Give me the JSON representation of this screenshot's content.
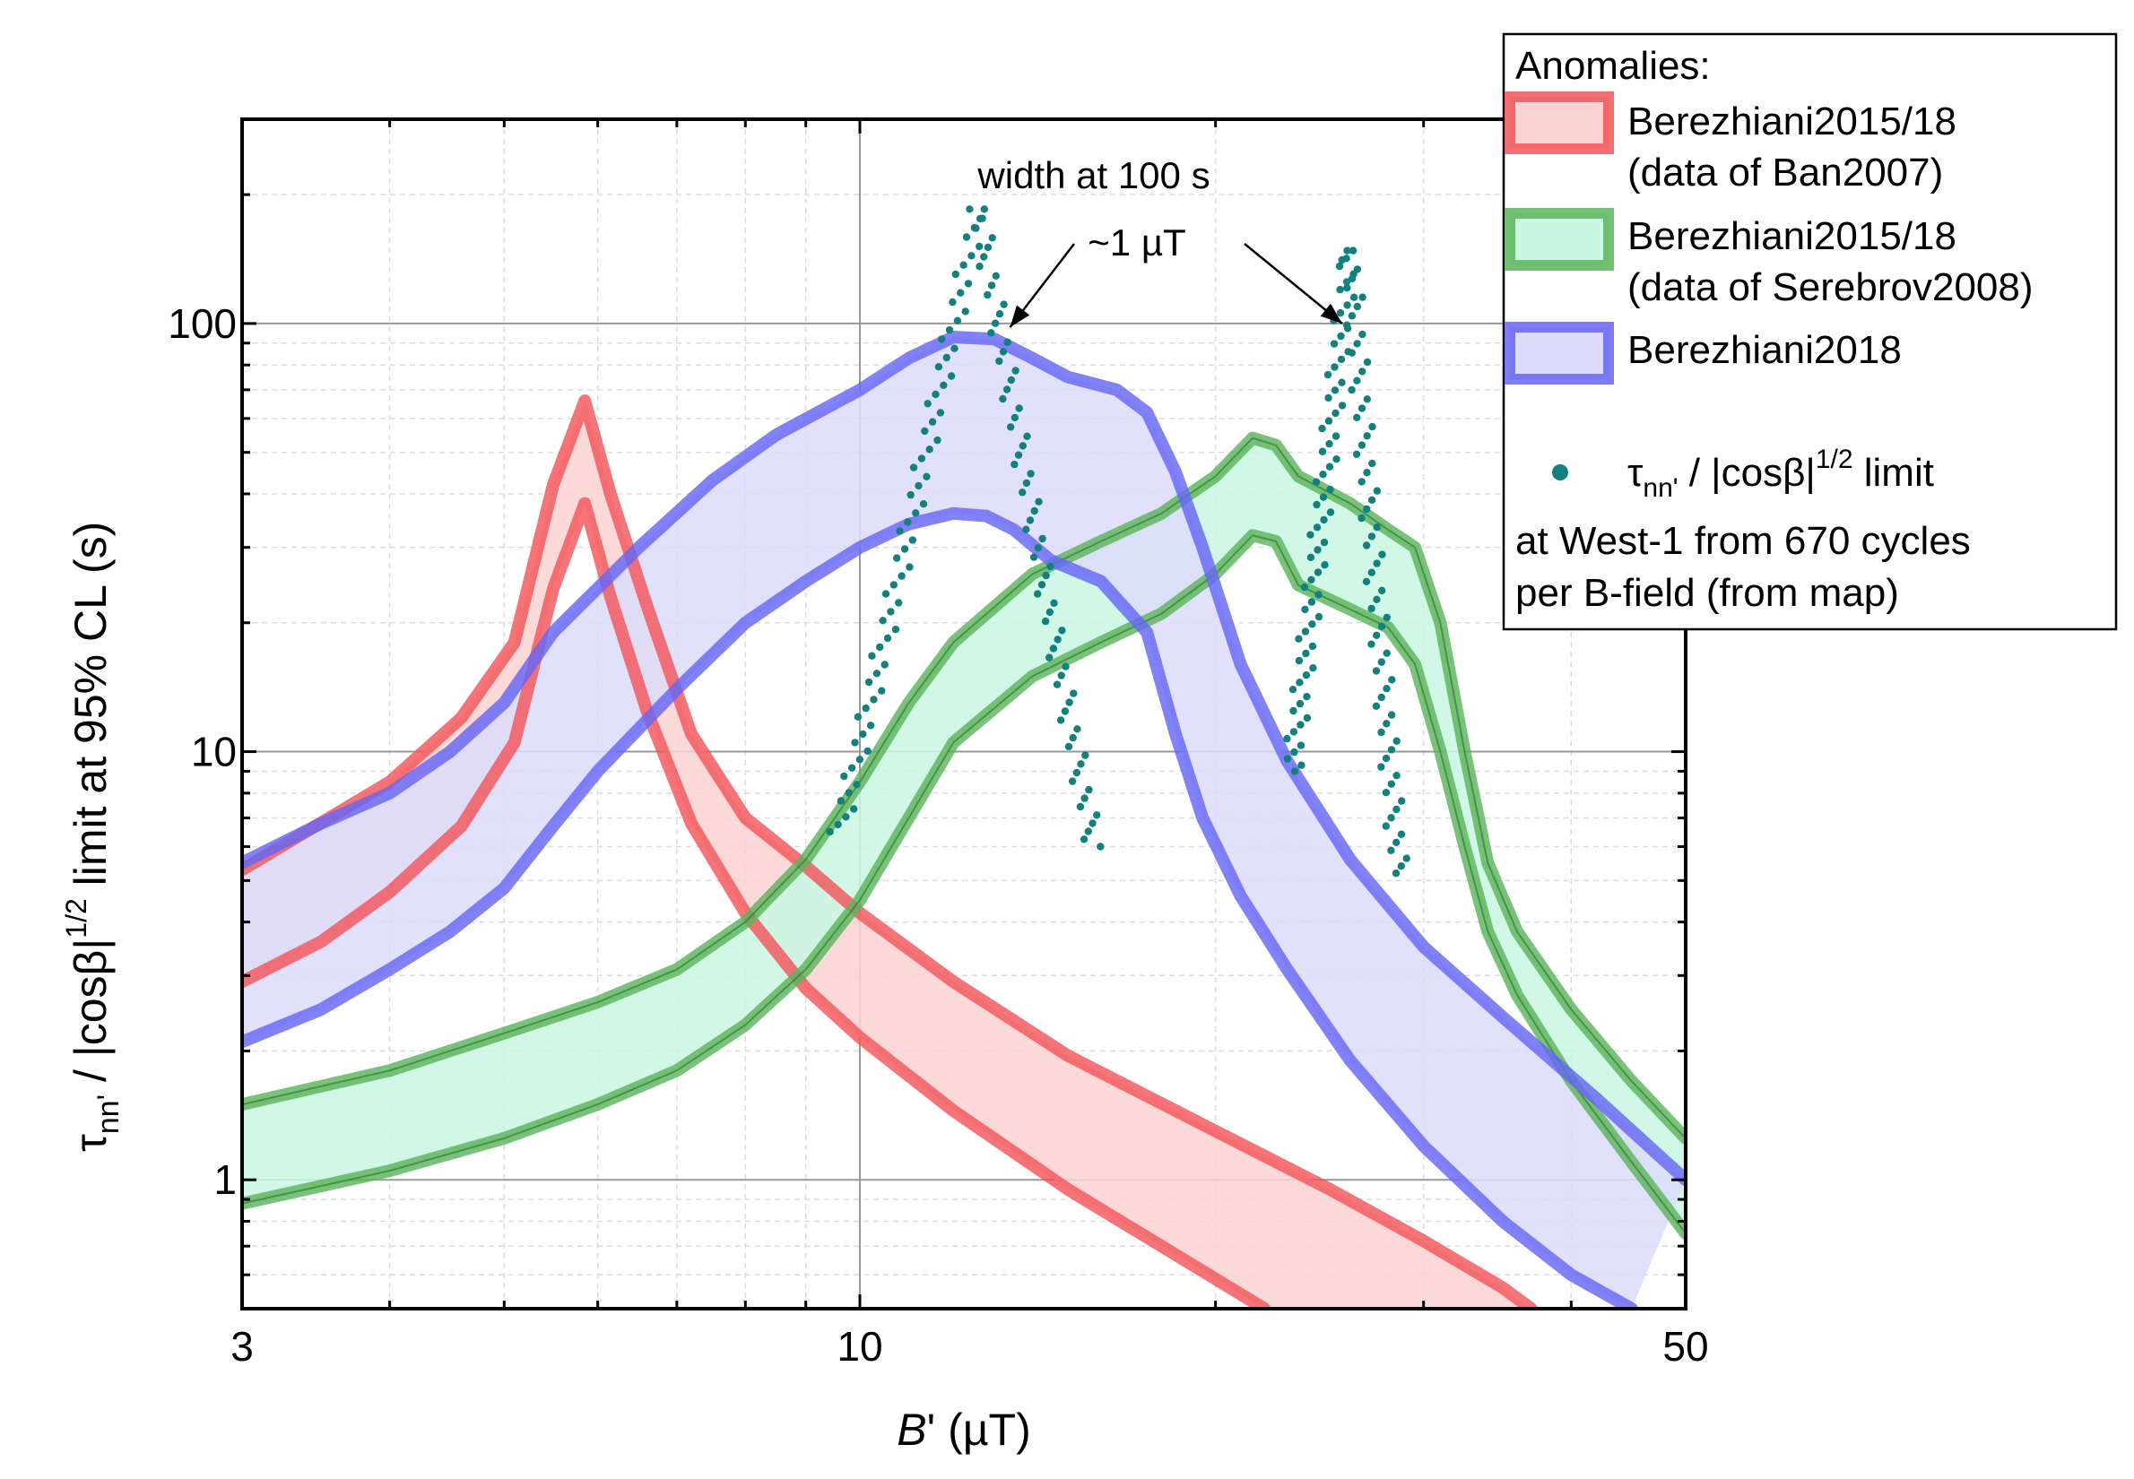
{
  "chart_data": {
    "type": "line",
    "x_scale": "log",
    "y_scale": "log",
    "xlim": [
      3,
      50
    ],
    "ylim": [
      0.5,
      300
    ],
    "xlabel_italic": "B",
    "xlabel_rest": "' (µT)",
    "ylabel_tau": "τ",
    "ylabel_sub": "nn'",
    "ylabel_mid": " / |cosβ|",
    "ylabel_sup": "1/2",
    "ylabel_rest": "   limit at 95% CL (s)",
    "x_ticks": [
      {
        "value": 3,
        "label": "3"
      },
      {
        "value": 10,
        "label": "10"
      },
      {
        "value": 50,
        "label": "50"
      }
    ],
    "y_ticks": [
      {
        "value": 1,
        "label": "1"
      },
      {
        "value": 10,
        "label": "10"
      },
      {
        "value": 100,
        "label": "100"
      }
    ],
    "bands": [
      {
        "name": "Berezhiani2015/18 (data of Ban2007)",
        "color": "#f2565a",
        "fill": "#fbd2d2",
        "upper": [
          [
            3,
            5.3
          ],
          [
            4,
            8.5
          ],
          [
            4.6,
            12
          ],
          [
            5.1,
            18
          ],
          [
            5.5,
            42
          ],
          [
            5.85,
            66
          ],
          [
            6.15,
            40
          ],
          [
            6.6,
            22
          ],
          [
            7.2,
            11
          ],
          [
            8,
            7
          ],
          [
            9,
            5.4
          ],
          [
            10,
            4.2
          ],
          [
            12,
            2.9
          ],
          [
            15,
            1.95
          ],
          [
            20,
            1.3
          ],
          [
            25,
            0.95
          ],
          [
            30,
            0.72
          ],
          [
            35,
            0.56
          ],
          [
            37,
            0.5
          ]
        ],
        "lower": [
          [
            3,
            2.9
          ],
          [
            3.5,
            3.6
          ],
          [
            4,
            4.7
          ],
          [
            4.6,
            6.7
          ],
          [
            5.1,
            10.5
          ],
          [
            5.5,
            24
          ],
          [
            5.85,
            38
          ],
          [
            6.15,
            23
          ],
          [
            6.6,
            12.5
          ],
          [
            7.2,
            6.8
          ],
          [
            8,
            4.2
          ],
          [
            9,
            2.8
          ],
          [
            10,
            2.15
          ],
          [
            12,
            1.45
          ],
          [
            15,
            0.95
          ],
          [
            18,
            0.7
          ],
          [
            22,
            0.5
          ]
        ]
      },
      {
        "name": "Berezhiani2015/18 (data of Serebrov2008)",
        "color": "#5bb55b",
        "fill": "#c9f7e3",
        "upper": [
          [
            3,
            1.5
          ],
          [
            4,
            1.8
          ],
          [
            5,
            2.2
          ],
          [
            6,
            2.6
          ],
          [
            7,
            3.1
          ],
          [
            8,
            4
          ],
          [
            9,
            5.6
          ],
          [
            10,
            8.5
          ],
          [
            11,
            13
          ],
          [
            12,
            18
          ],
          [
            14,
            26
          ],
          [
            16,
            31
          ],
          [
            18,
            36
          ],
          [
            20,
            44
          ],
          [
            21.5,
            54
          ],
          [
            22.5,
            52
          ],
          [
            23.5,
            44
          ],
          [
            26,
            38
          ],
          [
            28,
            33
          ],
          [
            29.5,
            30
          ],
          [
            31,
            20
          ],
          [
            32.5,
            10
          ],
          [
            34,
            5.5
          ],
          [
            36,
            3.8
          ],
          [
            40,
            2.5
          ],
          [
            45,
            1.7
          ],
          [
            50,
            1.25
          ]
        ],
        "lower": [
          [
            3,
            0.88
          ],
          [
            4,
            1.05
          ],
          [
            5,
            1.25
          ],
          [
            6,
            1.5
          ],
          [
            7,
            1.8
          ],
          [
            8,
            2.3
          ],
          [
            9,
            3.1
          ],
          [
            10,
            4.5
          ],
          [
            11,
            7
          ],
          [
            12,
            10.5
          ],
          [
            14,
            15
          ],
          [
            16,
            18
          ],
          [
            18,
            21
          ],
          [
            20,
            26
          ],
          [
            21.5,
            32
          ],
          [
            22.5,
            31
          ],
          [
            23.5,
            24.5
          ],
          [
            26,
            21.5
          ],
          [
            28,
            19.5
          ],
          [
            29.5,
            16
          ],
          [
            31,
            10
          ],
          [
            32.5,
            6
          ],
          [
            34,
            3.8
          ],
          [
            36,
            2.7
          ],
          [
            40,
            1.7
          ],
          [
            45,
            1.1
          ],
          [
            50,
            0.75
          ]
        ]
      },
      {
        "name": "Berezhiani2018",
        "color": "#6666f5",
        "fill": "#dcdcfa",
        "upper": [
          [
            3,
            5.5
          ],
          [
            3.5,
            6.8
          ],
          [
            4,
            8
          ],
          [
            4.5,
            10
          ],
          [
            5,
            13
          ],
          [
            5.5,
            19
          ],
          [
            6.5,
            30
          ],
          [
            7.5,
            43
          ],
          [
            8.5,
            55
          ],
          [
            10,
            70
          ],
          [
            11,
            83
          ],
          [
            12,
            93
          ],
          [
            13,
            92
          ],
          [
            14,
            83
          ],
          [
            15,
            75
          ],
          [
            16.5,
            70
          ],
          [
            17.5,
            62
          ],
          [
            18.5,
            45
          ],
          [
            19.5,
            30
          ],
          [
            21,
            16
          ],
          [
            23,
            9.5
          ],
          [
            26,
            5.6
          ],
          [
            30,
            3.5
          ],
          [
            35,
            2.4
          ],
          [
            42,
            1.55
          ],
          [
            50,
            1
          ]
        ],
        "lower": [
          [
            3,
            2.1
          ],
          [
            3.5,
            2.5
          ],
          [
            4,
            3.1
          ],
          [
            4.5,
            3.8
          ],
          [
            5,
            4.8
          ],
          [
            5.5,
            6.7
          ],
          [
            6,
            9
          ],
          [
            7,
            14
          ],
          [
            8,
            20
          ],
          [
            9,
            25
          ],
          [
            10,
            30
          ],
          [
            11,
            34
          ],
          [
            12,
            36
          ],
          [
            12.8,
            35.5
          ],
          [
            13.5,
            33
          ],
          [
            14.5,
            28
          ],
          [
            16,
            25
          ],
          [
            17.5,
            19
          ],
          [
            18.5,
            11
          ],
          [
            19.5,
            7
          ],
          [
            21,
            4.6
          ],
          [
            23,
            3.1
          ],
          [
            26,
            1.9
          ],
          [
            30,
            1.2
          ],
          [
            35,
            0.8
          ],
          [
            40,
            0.6
          ],
          [
            45,
            0.5
          ]
        ]
      }
    ],
    "scatter": {
      "name": "τnn' / |cosβ|1/2 limit",
      "color": "#138080",
      "peaks": [
        {
          "center": 12.6,
          "peak": 185,
          "left_start": 9.6,
          "left_start_y": 6.5,
          "right_end": 15.8,
          "right_end_y": 6.0
        },
        {
          "center": 26.0,
          "peak": 148,
          "left_start": 23.2,
          "left_start_y": 9.0,
          "right_end": 28.6,
          "right_end_y": 5.2
        }
      ]
    },
    "annotations": [
      {
        "text": "width at 100 s",
        "arrow_to": [
          13.4,
          98
        ]
      },
      {
        "text": "~1 µT",
        "arrow_to": [
          25.6,
          100
        ]
      }
    ]
  },
  "legend": {
    "title": "Anomalies:",
    "items": [
      {
        "line1": "Berezhiani2015/18",
        "line2": "(data of Ban2007)",
        "color": "#f2565a",
        "fill": "#fbd2d2"
      },
      {
        "line1": "Berezhiani2015/18",
        "line2": "(data of Serebrov2008)",
        "color": "#5bb55b",
        "fill": "#c9f7e3"
      },
      {
        "line1": "Berezhiani2018",
        "line2": "",
        "color": "#6666f5",
        "fill": "#dcdcfa"
      }
    ],
    "scatter_label": {
      "tau": "τ",
      "sub": "nn'",
      "mid": " / |cosβ|",
      "sup": "1/2",
      "rest": " limit"
    },
    "note_line1": "at West-1 from 670 cycles",
    "note_line2": "per B-field (from map)"
  }
}
